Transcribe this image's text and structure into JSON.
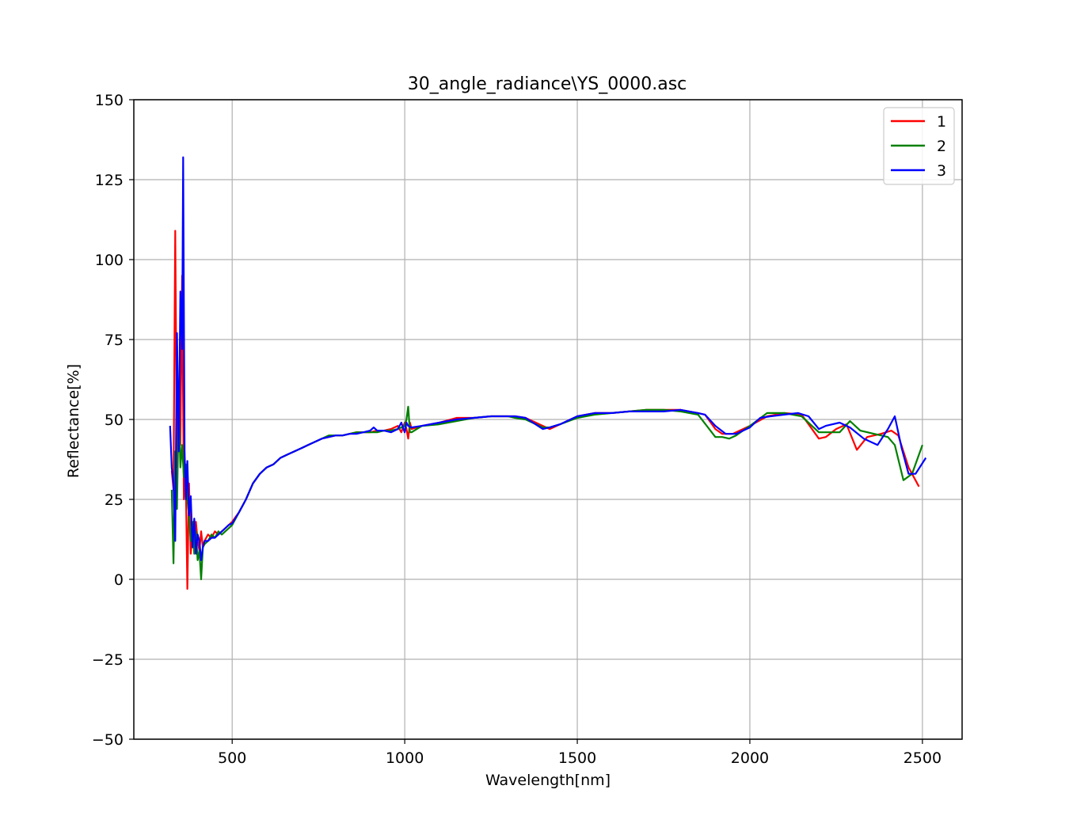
{
  "chart_data": {
    "type": "line",
    "title": "30_angle_radiance\\YS_0000.asc",
    "xlabel": "Wavelength[nm]",
    "ylabel": "Reflectance[%]",
    "xlim": [
      215,
      2615
    ],
    "ylim": [
      -50,
      150
    ],
    "xticks": [
      500,
      1000,
      1500,
      2000,
      2500
    ],
    "xtick_labels": [
      "500",
      "1000",
      "1500",
      "2000",
      "2500"
    ],
    "yticks": [
      -50,
      -25,
      0,
      25,
      50,
      75,
      100,
      125,
      150
    ],
    "ytick_labels": [
      "−50",
      "−25",
      "0",
      "25",
      "50",
      "75",
      "100",
      "125",
      "150"
    ],
    "grid": true,
    "legend": "top-right",
    "series": [
      {
        "name": "1",
        "color": "#ff0000",
        "x": [
          325,
          330,
          335,
          340,
          345,
          350,
          355,
          360,
          365,
          370,
          375,
          380,
          385,
          390,
          395,
          400,
          405,
          410,
          415,
          420,
          430,
          440,
          450,
          460,
          470,
          480,
          490,
          500,
          520,
          540,
          560,
          580,
          600,
          620,
          640,
          660,
          680,
          700,
          720,
          740,
          760,
          780,
          800,
          820,
          840,
          860,
          880,
          900,
          920,
          940,
          960,
          980,
          990,
          1000,
          1005,
          1010,
          1015,
          1020,
          1050,
          1100,
          1150,
          1200,
          1250,
          1300,
          1320,
          1350,
          1400,
          1420,
          1450,
          1500,
          1550,
          1600,
          1650,
          1700,
          1750,
          1800,
          1850,
          1870,
          1900,
          1920,
          1950,
          2000,
          2050,
          2100,
          2150,
          2200,
          2220,
          2250,
          2280,
          2310,
          2340,
          2380,
          2410,
          2430,
          2460,
          2490
        ],
        "y": [
          34,
          28,
          109,
          35,
          60,
          42,
          95,
          25,
          35,
          -3,
          30,
          8,
          15,
          10,
          18,
          12,
          9,
          15,
          10,
          12,
          14,
          13,
          15,
          14,
          15,
          16,
          17,
          18,
          21,
          25,
          30,
          33,
          35,
          36,
          38,
          39,
          40,
          41,
          42,
          43,
          44,
          44.5,
          45,
          45,
          45.5,
          46,
          46,
          46,
          46.5,
          46.5,
          47,
          48,
          46,
          49,
          47,
          44,
          49,
          47,
          48,
          49,
          50.5,
          50.5,
          51,
          51,
          51,
          50.5,
          48,
          47,
          48.5,
          51,
          52,
          52,
          52.5,
          53,
          53,
          53,
          52,
          51.5,
          47,
          45.5,
          45.5,
          48,
          51,
          52,
          51.5,
          44,
          44.5,
          47,
          48.5,
          40.5,
          44.5,
          45.5,
          46.5,
          45,
          35,
          29
        ]
      },
      {
        "name": "2",
        "color": "#008000",
        "x": [
          325,
          330,
          335,
          340,
          345,
          350,
          355,
          360,
          365,
          370,
          375,
          380,
          385,
          390,
          395,
          400,
          405,
          410,
          415,
          420,
          430,
          440,
          450,
          460,
          470,
          480,
          490,
          500,
          520,
          540,
          560,
          580,
          600,
          620,
          640,
          660,
          680,
          700,
          720,
          740,
          760,
          780,
          800,
          820,
          840,
          860,
          880,
          900,
          920,
          940,
          960,
          980,
          1000,
          1005,
          1010,
          1015,
          1020,
          1050,
          1100,
          1150,
          1200,
          1250,
          1300,
          1320,
          1350,
          1400,
          1420,
          1450,
          1500,
          1550,
          1600,
          1650,
          1700,
          1750,
          1800,
          1850,
          1900,
          1920,
          1940,
          1960,
          2000,
          2050,
          2100,
          2150,
          2200,
          2220,
          2260,
          2290,
          2320,
          2360,
          2400,
          2420,
          2445,
          2470,
          2500
        ],
        "y": [
          28,
          5,
          40,
          22,
          55,
          35,
          42,
          32,
          36,
          25,
          20,
          12,
          18,
          8,
          15,
          6,
          9,
          0,
          10,
          11,
          12,
          14,
          13,
          15,
          14,
          15,
          16,
          17,
          21,
          25,
          30,
          33,
          35,
          36,
          38,
          39,
          40,
          41,
          42,
          43,
          44,
          45,
          45,
          45,
          45.5,
          46,
          46,
          46,
          46,
          46.5,
          46.5,
          47,
          48,
          50,
          54,
          46,
          46,
          48,
          48.5,
          49.5,
          50.5,
          51,
          51,
          50.5,
          50,
          47.5,
          47.5,
          48.5,
          50.5,
          51.5,
          52,
          52.5,
          53,
          53,
          52.5,
          51.5,
          44.5,
          44.5,
          44,
          45,
          48,
          52,
          52,
          51,
          46,
          46,
          46,
          49.5,
          46.5,
          45.5,
          44.5,
          42,
          31,
          33,
          42
        ]
      },
      {
        "name": "3",
        "color": "#0000ff",
        "x": [
          320,
          325,
          330,
          335,
          340,
          345,
          350,
          355,
          358,
          362,
          366,
          370,
          375,
          380,
          385,
          390,
          395,
          400,
          405,
          410,
          415,
          420,
          430,
          440,
          450,
          460,
          470,
          480,
          490,
          500,
          520,
          540,
          560,
          580,
          600,
          620,
          640,
          660,
          680,
          700,
          720,
          740,
          760,
          780,
          800,
          820,
          840,
          860,
          880,
          900,
          910,
          920,
          940,
          960,
          980,
          990,
          1000,
          1005,
          1010,
          1020,
          1050,
          1100,
          1150,
          1200,
          1250,
          1300,
          1320,
          1350,
          1400,
          1420,
          1450,
          1500,
          1550,
          1600,
          1650,
          1700,
          1750,
          1800,
          1850,
          1870,
          1900,
          1930,
          1960,
          2000,
          2030,
          2060,
          2100,
          2140,
          2170,
          2200,
          2220,
          2260,
          2290,
          2330,
          2370,
          2400,
          2420,
          2440,
          2460,
          2480,
          2510
        ],
        "y": [
          48,
          35,
          30,
          12,
          77,
          40,
          90,
          72,
          132,
          40,
          25,
          37,
          20,
          26,
          10,
          19,
          8,
          14,
          12,
          6,
          10,
          12,
          12,
          13,
          13,
          14,
          15,
          16,
          17,
          17.5,
          21,
          25,
          30,
          33,
          35,
          36,
          38,
          39,
          40,
          41,
          42,
          43,
          44,
          44.5,
          45,
          45,
          45.5,
          45.5,
          46,
          46.5,
          47.5,
          46.5,
          46.5,
          46,
          47,
          49,
          46,
          49,
          48,
          47.5,
          48,
          49,
          50,
          50.5,
          51,
          51,
          51,
          50.5,
          47,
          47.5,
          48.5,
          51,
          52,
          52,
          52.5,
          52.5,
          52.5,
          53,
          52,
          51.5,
          48,
          45.5,
          45.5,
          47.5,
          50.5,
          51,
          51.5,
          52,
          51,
          47,
          48,
          49,
          47.5,
          44,
          42,
          47,
          51,
          41,
          33,
          33,
          38
        ]
      }
    ]
  }
}
